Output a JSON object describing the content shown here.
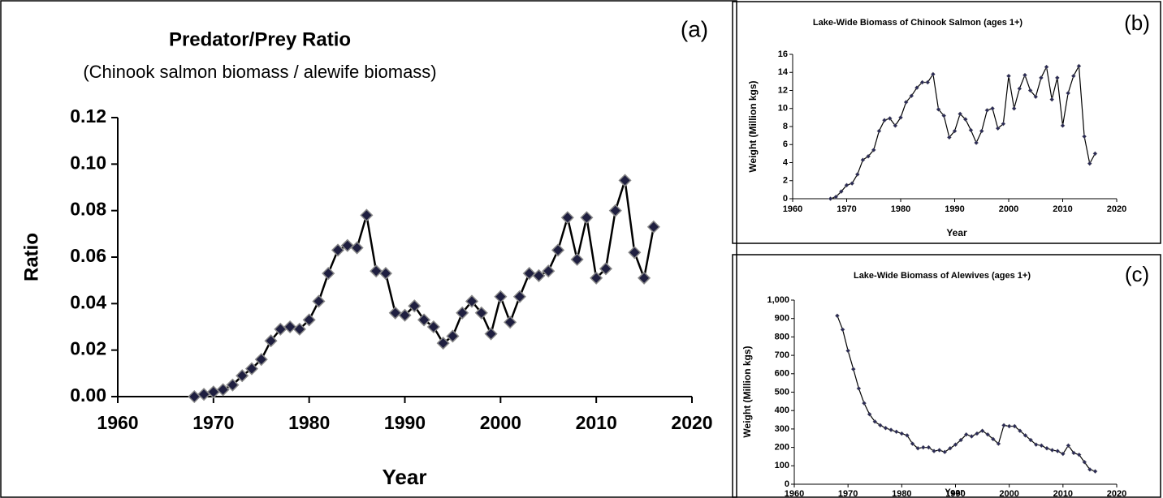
{
  "chart_data": [
    {
      "type": "line",
      "title": "Predator/Prey Ratio",
      "subtitle": "(Chinook salmon biomass / alewife biomass)",
      "panel_label": "(a)",
      "x_label": "Year",
      "y_label": "Ratio",
      "color": "#000000",
      "marker_color": "#1f1f40",
      "x": [
        1968,
        1969,
        1970,
        1971,
        1972,
        1973,
        1974,
        1975,
        1976,
        1977,
        1978,
        1979,
        1980,
        1981,
        1982,
        1983,
        1984,
        1985,
        1986,
        1987,
        1988,
        1989,
        1990,
        1991,
        1992,
        1993,
        1994,
        1995,
        1996,
        1997,
        1998,
        1999,
        2000,
        2001,
        2002,
        2003,
        2004,
        2005,
        2006,
        2007,
        2008,
        2009,
        2010,
        2011,
        2012,
        2013,
        2014,
        2015,
        2016
      ],
      "values": [
        0.0,
        0.001,
        0.002,
        0.003,
        0.005,
        0.009,
        0.012,
        0.016,
        0.024,
        0.029,
        0.03,
        0.029,
        0.033,
        0.041,
        0.053,
        0.063,
        0.065,
        0.064,
        0.078,
        0.054,
        0.053,
        0.036,
        0.035,
        0.039,
        0.033,
        0.03,
        0.023,
        0.026,
        0.036,
        0.041,
        0.036,
        0.027,
        0.043,
        0.032,
        0.043,
        0.053,
        0.052,
        0.054,
        0.063,
        0.077,
        0.059,
        0.077,
        0.051,
        0.055,
        0.08,
        0.093,
        0.062,
        0.051,
        0.073
      ],
      "xlim": [
        1960,
        2020
      ],
      "xticks": [
        1960,
        1970,
        1980,
        1990,
        2000,
        2010,
        2020
      ],
      "ylim": [
        0,
        0.12
      ],
      "yticks": [
        {
          "value": 0,
          "label": "0.00"
        },
        0.02,
        0.04,
        0.06,
        0.08,
        {
          "value": 0.1,
          "label": "0.10"
        },
        0.12
      ]
    },
    {
      "type": "line",
      "title": "Lake-Wide Biomass of Chinook Salmon (ages 1+)",
      "panel_label": "(b)",
      "x_label": "Year",
      "y_label": "Weight (Million kgs)",
      "color": "#000000",
      "marker_color": "#2a2a55",
      "x": [
        1967,
        1968,
        1969,
        1970,
        1971,
        1972,
        1973,
        1974,
        1975,
        1976,
        1977,
        1978,
        1979,
        1980,
        1981,
        1982,
        1983,
        1984,
        1985,
        1986,
        1987,
        1988,
        1989,
        1990,
        1991,
        1992,
        1993,
        1994,
        1995,
        1996,
        1997,
        1998,
        1999,
        2000,
        2001,
        2002,
        2003,
        2004,
        2005,
        2006,
        2007,
        2008,
        2009,
        2010,
        2011,
        2012,
        2013,
        2014,
        2015,
        2016
      ],
      "values": [
        0,
        0.2,
        0.8,
        1.5,
        1.7,
        2.7,
        4.3,
        4.7,
        5.4,
        7.5,
        8.7,
        8.9,
        8.1,
        9.0,
        10.7,
        11.4,
        12.3,
        12.9,
        12.9,
        13.8,
        9.9,
        9.2,
        6.8,
        7.5,
        9.4,
        8.8,
        7.6,
        6.2,
        7.5,
        9.8,
        10.0,
        7.8,
        8.3,
        13.6,
        10.0,
        12.2,
        13.7,
        12.0,
        11.3,
        13.4,
        14.6,
        11.0,
        13.4,
        8.1,
        11.7,
        13.6,
        14.7,
        6.9,
        3.9,
        5.0
      ],
      "xlim": [
        1960,
        2020
      ],
      "xticks": [
        1960,
        1970,
        1980,
        1990,
        2000,
        2010,
        2020
      ],
      "ylim": [
        0,
        16
      ],
      "yticks": [
        0,
        2,
        4,
        6,
        8,
        10,
        12,
        14,
        16
      ]
    },
    {
      "type": "line",
      "title": "Lake-Wide Biomass of Alewives (ages 1+)",
      "panel_label": "(c)",
      "x_label": "Year",
      "y_label": "Weight (Million kgs)",
      "color": "#000000",
      "marker_color": "#2a2a55",
      "x": [
        1968,
        1969,
        1970,
        1971,
        1972,
        1973,
        1974,
        1975,
        1976,
        1977,
        1978,
        1979,
        1980,
        1981,
        1982,
        1983,
        1984,
        1985,
        1986,
        1987,
        1988,
        1989,
        1990,
        1991,
        1992,
        1993,
        1994,
        1995,
        1996,
        1997,
        1998,
        1999,
        2000,
        2001,
        2002,
        2003,
        2004,
        2005,
        2006,
        2007,
        2008,
        2009,
        2010,
        2011,
        2012,
        2013,
        2014,
        2015,
        2016
      ],
      "values": [
        915,
        840,
        725,
        625,
        520,
        440,
        380,
        340,
        320,
        305,
        295,
        285,
        275,
        265,
        220,
        195,
        200,
        200,
        180,
        185,
        175,
        195,
        215,
        240,
        270,
        260,
        275,
        290,
        270,
        245,
        220,
        320,
        315,
        315,
        290,
        265,
        240,
        215,
        210,
        195,
        185,
        180,
        165,
        210,
        170,
        160,
        120,
        80,
        70
      ],
      "xlim": [
        1960,
        2020
      ],
      "xticks": [
        1960,
        1970,
        1980,
        1990,
        2000,
        2010,
        2020
      ],
      "ylim": [
        0,
        1000
      ],
      "yticks": [
        0,
        100,
        200,
        300,
        400,
        500,
        600,
        700,
        800,
        900,
        {
          "value": 1000,
          "label": "1,000"
        }
      ]
    }
  ]
}
